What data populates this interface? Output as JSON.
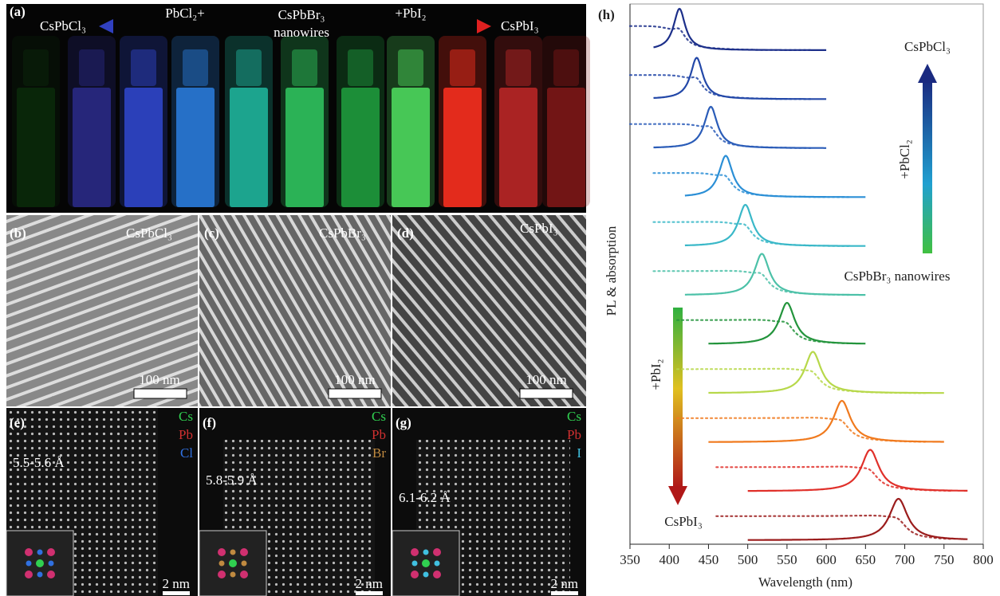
{
  "panels": {
    "a": {
      "label": "(a)",
      "left": "CsPbCl₃",
      "arrow_left": "PbCl₂+",
      "center_top": "CsPbBr₃",
      "center_bottom": "nanowires",
      "arrow_right": "+PbI₂",
      "right": "CsPbI₃"
    },
    "b": {
      "label": "(b)",
      "title": "CsPbCl₃",
      "scale": "100 nm"
    },
    "c": {
      "label": "(c)",
      "title": "CsPbBr₃",
      "scale": "100 nm"
    },
    "d": {
      "label": "(d)",
      "title": "CsPbI₃",
      "scale": "100 nm"
    },
    "e": {
      "label": "(e)",
      "elements": [
        "Cs",
        "Pb",
        "Cl"
      ],
      "spacing": "5.5-5.6 Å",
      "scale": "2 nm"
    },
    "f": {
      "label": "(f)",
      "elements": [
        "Cs",
        "Pb",
        "Br"
      ],
      "spacing": "5.8-5.9 Å",
      "scale": "2 nm"
    },
    "g": {
      "label": "(g)",
      "elements": [
        "Cs",
        "Pb",
        "I"
      ],
      "spacing": "6.1-6.2 Å",
      "scale": "2 nm"
    }
  },
  "chart_data": {
    "type": "spectra",
    "label": "(h)",
    "xlabel": "Wavelength (nm)",
    "ylabel": "PL & absorption",
    "annotations": [
      "CsPbCl₃",
      "+PbCl₂",
      "CsPbBr₃ nanowires",
      "+PbI₂",
      "CsPbI₃"
    ],
    "xlim": [
      350,
      800
    ],
    "xticks": [
      350,
      400,
      450,
      500,
      550,
      600,
      650,
      700,
      750,
      800
    ],
    "series": [
      {
        "color": "#1c2f8a",
        "peak": 413,
        "range": [
          380,
          600
        ]
      },
      {
        "color": "#2348a8",
        "peak": 435,
        "range": [
          380,
          600
        ]
      },
      {
        "color": "#2a5cb8",
        "peak": 453,
        "range": [
          380,
          600
        ]
      },
      {
        "color": "#2b8fd6",
        "peak": 472,
        "range": [
          420,
          650
        ]
      },
      {
        "color": "#3ab8c8",
        "peak": 497,
        "range": [
          420,
          650
        ]
      },
      {
        "color": "#4cc1a8",
        "peak": 518,
        "range": [
          420,
          650
        ]
      },
      {
        "color": "#23943c",
        "peak": 550,
        "range": [
          450,
          650
        ]
      },
      {
        "color": "#b7d84a",
        "peak": 583,
        "range": [
          450,
          750
        ]
      },
      {
        "color": "#f07a1e",
        "peak": 620,
        "range": [
          450,
          750
        ]
      },
      {
        "color": "#e0302a",
        "peak": 656,
        "range": [
          500,
          780
        ]
      },
      {
        "color": "#9b1c1c",
        "peak": 692,
        "range": [
          500,
          780
        ]
      }
    ]
  }
}
